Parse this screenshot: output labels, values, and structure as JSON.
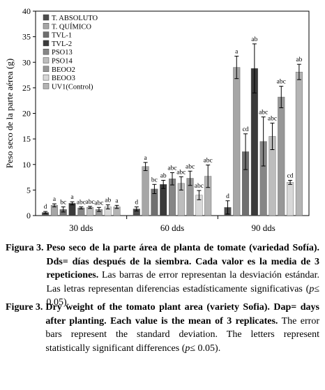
{
  "chart_data": {
    "type": "bar",
    "ylabel": "Peso seco de la parte aérea (g)",
    "ylim": [
      0,
      40
    ],
    "yticks": [
      0,
      5,
      10,
      15,
      20,
      25,
      30,
      35,
      40
    ],
    "categories": [
      "30 dds",
      "60 dds",
      "90 dds"
    ],
    "legend_position": "top-left",
    "series": [
      {
        "name": "T. ABSOLUTO",
        "color": "#4d4d4d",
        "values": [
          0.6,
          1.3,
          1.6
        ],
        "errors": [
          0.2,
          0.4,
          1.3
        ],
        "letters": [
          "d",
          "d",
          "d"
        ]
      },
      {
        "name": "T. QUÍMICO",
        "color": "#a6a6a6",
        "values": [
          2.0,
          9.6,
          29.0
        ],
        "errors": [
          0.3,
          0.8,
          2.2
        ],
        "letters": [
          "a",
          "a",
          "a"
        ]
      },
      {
        "name": "TVL-1",
        "color": "#6f6f6f",
        "values": [
          1.2,
          5.2,
          12.5
        ],
        "errors": [
          0.5,
          0.9,
          3.5
        ],
        "letters": [
          "bc",
          "bc",
          "cd"
        ]
      },
      {
        "name": "TVL-2",
        "color": "#3a3a3a",
        "values": [
          2.4,
          6.1,
          28.8
        ],
        "errors": [
          0.3,
          0.8,
          4.8
        ],
        "letters": [
          "a",
          "ab",
          "ab"
        ]
      },
      {
        "name": "PSO13",
        "color": "#868686",
        "values": [
          1.5,
          7.2,
          14.5
        ],
        "errors": [
          0.2,
          1.2,
          4.8
        ],
        "letters": [
          "abc",
          "abc",
          "abc"
        ]
      },
      {
        "name": "PSO14",
        "color": "#bdbdbd",
        "values": [
          1.6,
          6.3,
          15.5
        ],
        "errors": [
          0.2,
          1.3,
          2.6
        ],
        "letters": [
          "abc",
          "abc",
          "abc"
        ]
      },
      {
        "name": "BEOO2",
        "color": "#979797",
        "values": [
          1.2,
          7.3,
          23.2
        ],
        "errors": [
          0.4,
          1.4,
          2.1
        ],
        "letters": [
          "abc",
          "abc",
          "abc"
        ]
      },
      {
        "name": "BEOO3",
        "color": "#d8d8d8",
        "values": [
          1.7,
          4.0,
          6.5
        ],
        "errors": [
          0.4,
          0.9,
          0.4
        ],
        "letters": [
          "ab",
          "abc",
          "cd"
        ]
      },
      {
        "name": "UV1(Control)",
        "color": "#b4b4b4",
        "values": [
          1.7,
          7.7,
          28.1
        ],
        "errors": [
          0.3,
          2.2,
          1.5
        ],
        "letters": [
          "a",
          "abc",
          "ab"
        ]
      }
    ]
  },
  "caption_es": {
    "label": "Figura 3.",
    "bold_text": "Peso seco de la parte área de planta de tomate (variedad Sofía). Dds= días después de la siembra. Cada valor es la media de 3 repeticiones.",
    "text_before_p": " Las barras de error representan la desviación estándar. Las letras representan diferencias estadísticamente significativas (",
    "p_symbol": "p",
    "text_after_p": "≤ 0.05)."
  },
  "caption_en": {
    "label": "Figure 3.",
    "bold_text": "Dry weight of the tomato plant area (variety Sofia). Dap= days after planting.  Each value is the mean of 3 replicates.",
    "text_before_p": " The error bars represent the standard deviation. The letters represent statistically significant differences (",
    "p_symbol": "p",
    "text_after_p": "≤ 0.05)."
  }
}
